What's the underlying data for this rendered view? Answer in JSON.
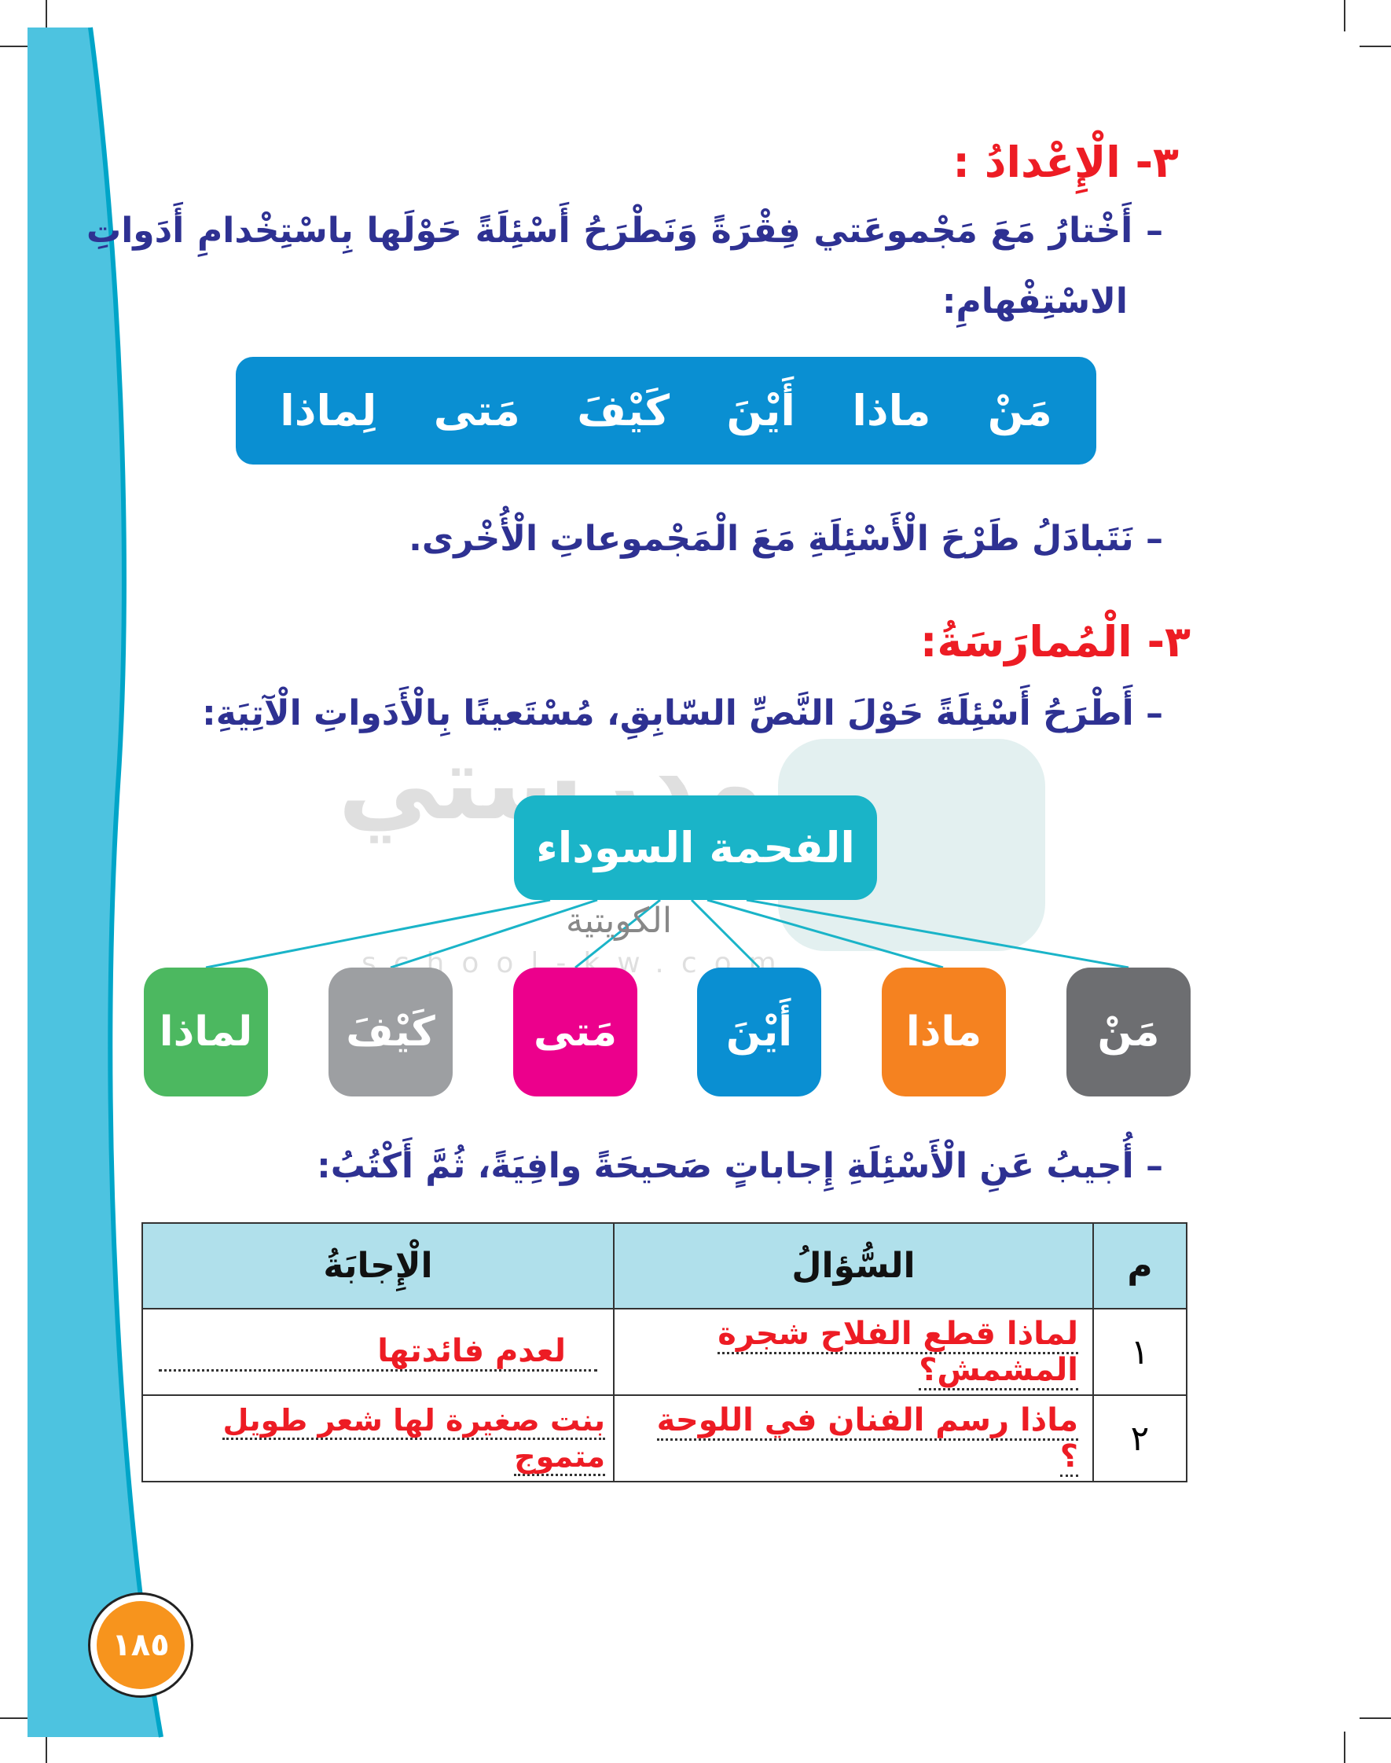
{
  "section_prep": {
    "heading": "٣- الْإِعْدادُ :",
    "instruction_line1": "– أَخْتارُ مَعَ مَجْموعَتي فِقْرَةً وَنَطْرَحُ أَسْئِلَةً حَوْلَها بِاسْتِخْدامِ أَدَواتِ",
    "instruction_line2": "الاسْتِفْهامِ:",
    "question_words": [
      "مَنْ",
      "ماذا",
      "أَيْنَ",
      "كَيْفَ",
      "مَتى",
      "لِماذا"
    ],
    "exchange_line": "– نَتَبادَلُ طَرْحَ الْأَسْئِلَةِ مَعَ الْمَجْموعاتِ الْأُخْرى."
  },
  "section_practice": {
    "heading": "٣- الْمُمارَسَةُ:",
    "instruction": "– أَطْرَحُ أَسْئِلَةً حَوْلَ النَّصِّ السّابِقِ، مُسْتَعينًا بِالْأَدَواتِ الْآتِيَةِ:",
    "center_title": "الفحمة السوداء",
    "tiles": [
      {
        "label": "مَنْ",
        "color": "#6d6e71"
      },
      {
        "label": "ماذا",
        "color": "#f58220"
      },
      {
        "label": "أَيْنَ",
        "color": "#0a8fd2"
      },
      {
        "label": "مَتى",
        "color": "#ec008c"
      },
      {
        "label": "كَيْفَ",
        "color": "#9d9fa2"
      },
      {
        "label": "لماذا",
        "color": "#4cb860"
      }
    ],
    "answer_instruction": "– أُجيبُ عَنِ الْأَسْئِلَةِ إِجاباتٍ صَحيحَةً وافِيَةً، ثُمَّ أَكْتُبُ:"
  },
  "table": {
    "headers": {
      "num": "م",
      "question": "السُّؤالُ",
      "answer": "الْإِجابَةُ"
    },
    "rows": [
      {
        "num": "١",
        "question": "لماذا قطع الفلاح شجرة المشمش؟",
        "answer": "لعدم فائدتها"
      },
      {
        "num": "٢",
        "question": "ماذا رسم الفنان في اللوحة ؟",
        "answer": "بنت صغيرة لها شعر طويل متموج"
      }
    ]
  },
  "watermark": {
    "name": "مدرستي",
    "sub": "الكويتية",
    "site": "school-kw.com"
  },
  "page_number": "١٨٥",
  "colors": {
    "sidebar": "#4dc3e0",
    "word_box": "#0a8fd2",
    "title_box": "#1ab4c8",
    "page_badge": "#f7941d",
    "heading": "#ed1c24",
    "text": "#2e3192"
  }
}
